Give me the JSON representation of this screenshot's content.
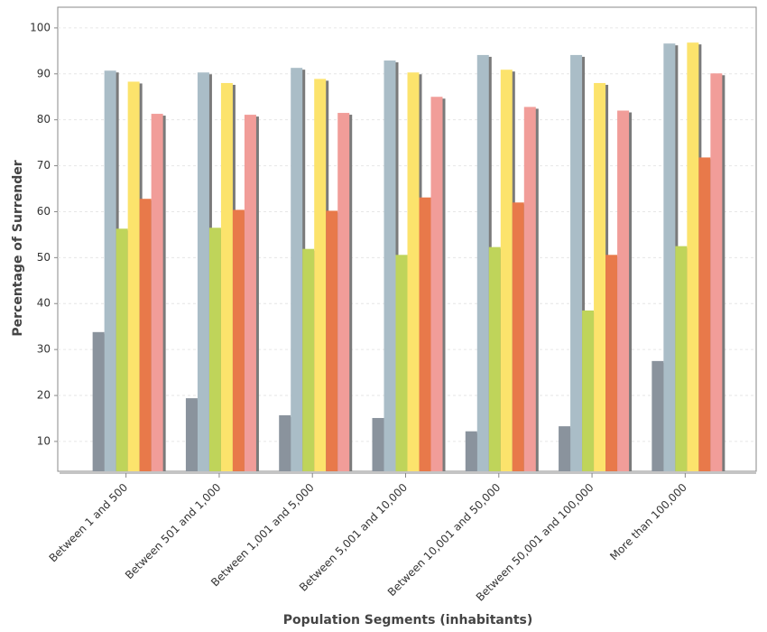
{
  "chart_data": {
    "type": "bar",
    "x_label": "Population Segments (inhabitants)",
    "y_label": "Percentage of Surrender",
    "categories": [
      "Between 1 and 500",
      "Between 501 and 1,000",
      "Between 1,001 and 5,000",
      "Between 5,001 and 10,000",
      "Between 10,001 and 50,000",
      "Between 50,001 and 100,000",
      "More than 100,000"
    ],
    "series": [
      {
        "color": "#8a939d",
        "values": [
          33.8,
          19.4,
          15.7,
          15.1,
          12.2,
          13.3,
          27.5
        ]
      },
      {
        "color": "#aabdc7",
        "values": [
          90.7,
          90.3,
          91.3,
          92.9,
          94.1,
          94.1,
          96.6
        ]
      },
      {
        "color": "#bfd45a",
        "values": [
          56.3,
          56.5,
          51.9,
          50.6,
          52.3,
          38.5,
          52.5
        ]
      },
      {
        "color": "#fce36c",
        "values": [
          88.3,
          88.0,
          88.9,
          90.3,
          90.9,
          88.0,
          96.8
        ]
      },
      {
        "color": "#e8794a",
        "values": [
          62.8,
          60.4,
          60.2,
          63.1,
          62.0,
          50.6,
          71.8
        ]
      },
      {
        "color": "#f19d99",
        "values": [
          81.3,
          81.1,
          81.5,
          85.0,
          82.8,
          82.0,
          90.1
        ]
      }
    ],
    "ylim": [
      3.5,
      104.5
    ],
    "yticks": [
      10,
      20,
      30,
      40,
      50,
      60,
      70,
      80,
      90,
      100
    ],
    "grid": true
  }
}
